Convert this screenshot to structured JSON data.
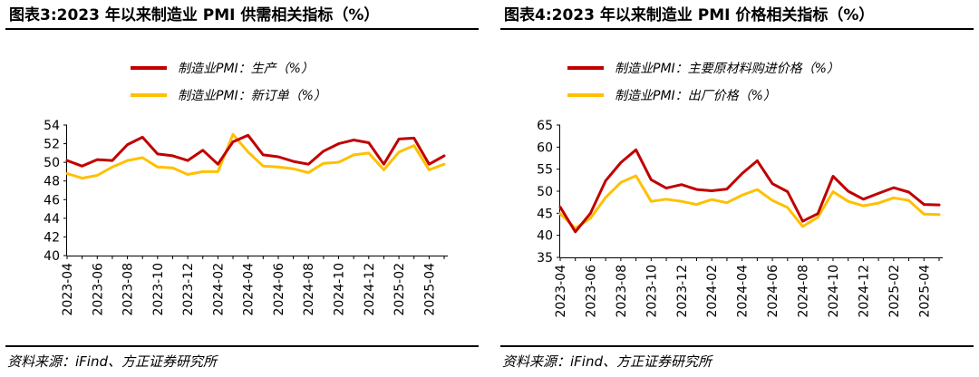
{
  "charts": [
    {
      "title": "图表3:2023 年以来制造业 PMI 供需相关指标（%）",
      "source": "资料来源：iFind、方正证券研究所",
      "chart_data": {
        "type": "line",
        "title": "图表3:2023 年以来制造业 PMI 供需相关指标（%）",
        "xlabel": "",
        "ylabel": "",
        "ylim": [
          40,
          54
        ],
        "yticks": [
          40,
          42,
          44,
          46,
          48,
          50,
          52,
          54
        ],
        "x": [
          "2023-04",
          "2023-05",
          "2023-06",
          "2023-07",
          "2023-08",
          "2023-09",
          "2023-10",
          "2023-11",
          "2023-12",
          "2024-01",
          "2024-02",
          "2024-03",
          "2024-04",
          "2024-05",
          "2024-06",
          "2024-07",
          "2024-08",
          "2024-09",
          "2024-10",
          "2024-11",
          "2024-12",
          "2025-01",
          "2025-02",
          "2025-03",
          "2025-04",
          "2025-05"
        ],
        "xtick_labels": [
          "2023-04",
          "2023-06",
          "2023-08",
          "2023-10",
          "2023-12",
          "2024-02",
          "2024-04",
          "2024-06",
          "2024-08",
          "2024-10",
          "2024-12",
          "2025-02",
          "2025-04"
        ],
        "grid": false,
        "legend_position": "top",
        "series": [
          {
            "name": "制造业PMI：生产（%）",
            "color": "#C00000",
            "values": [
              50.2,
              49.6,
              50.3,
              50.2,
              51.9,
              52.7,
              50.9,
              50.7,
              50.2,
              51.3,
              49.8,
              52.2,
              52.9,
              50.8,
              50.6,
              50.1,
              49.8,
              51.2,
              52.0,
              52.4,
              52.1,
              49.8,
              52.5,
              52.6,
              49.8,
              50.7
            ]
          },
          {
            "name": "制造业PMI：新订单（%）",
            "color": "#FFC000",
            "values": [
              48.8,
              48.3,
              48.6,
              49.5,
              50.2,
              50.5,
              49.5,
              49.4,
              48.7,
              49.0,
              49.0,
              53.0,
              51.1,
              49.6,
              49.5,
              49.3,
              48.9,
              49.9,
              50.0,
              50.8,
              51.0,
              49.2,
              51.1,
              51.8,
              49.2,
              49.8
            ]
          }
        ]
      }
    },
    {
      "title": "图表4:2023 年以来制造业 PMI 价格相关指标（%）",
      "source": "资料来源：iFind、方正证券研究所",
      "chart_data": {
        "type": "line",
        "title": "图表4:2023 年以来制造业 PMI 价格相关指标（%）",
        "xlabel": "",
        "ylabel": "",
        "ylim": [
          35,
          65
        ],
        "yticks": [
          35,
          40,
          45,
          50,
          55,
          60,
          65
        ],
        "x": [
          "2023-04",
          "2023-05",
          "2023-06",
          "2023-07",
          "2023-08",
          "2023-09",
          "2023-10",
          "2023-11",
          "2023-12",
          "2024-01",
          "2024-02",
          "2024-03",
          "2024-04",
          "2024-05",
          "2024-06",
          "2024-07",
          "2024-08",
          "2024-09",
          "2024-10",
          "2024-11",
          "2024-12",
          "2025-01",
          "2025-02",
          "2025-03",
          "2025-04",
          "2025-05"
        ],
        "xtick_labels": [
          "2023-04",
          "2023-06",
          "2023-08",
          "2023-10",
          "2023-12",
          "2024-02",
          "2024-04",
          "2024-06",
          "2024-08",
          "2024-10",
          "2024-12",
          "2025-02",
          "2025-04"
        ],
        "grid": false,
        "legend_position": "top",
        "series": [
          {
            "name": "制造业PMI：主要原材料购进价格（%）",
            "color": "#C00000",
            "values": [
              46.4,
              40.8,
              45.0,
              52.4,
              56.5,
              59.4,
              52.6,
              50.7,
              51.5,
              50.4,
              50.1,
              50.5,
              54.0,
              56.9,
              51.7,
              49.9,
              43.2,
              44.9,
              53.4,
              50.0,
              48.2,
              49.5,
              50.8,
              49.8,
              47.0,
              46.9
            ]
          },
          {
            "name": "制造业PMI：出厂价格（%）",
            "color": "#FFC000",
            "values": [
              44.9,
              41.6,
              43.9,
              48.6,
              52.0,
              53.5,
              47.7,
              48.2,
              47.7,
              47.0,
              48.1,
              47.4,
              49.1,
              50.4,
              47.9,
              46.3,
              42.0,
              44.1,
              49.9,
              47.7,
              46.7,
              47.3,
              48.5,
              47.9,
              44.8,
              44.7
            ]
          }
        ]
      }
    }
  ]
}
